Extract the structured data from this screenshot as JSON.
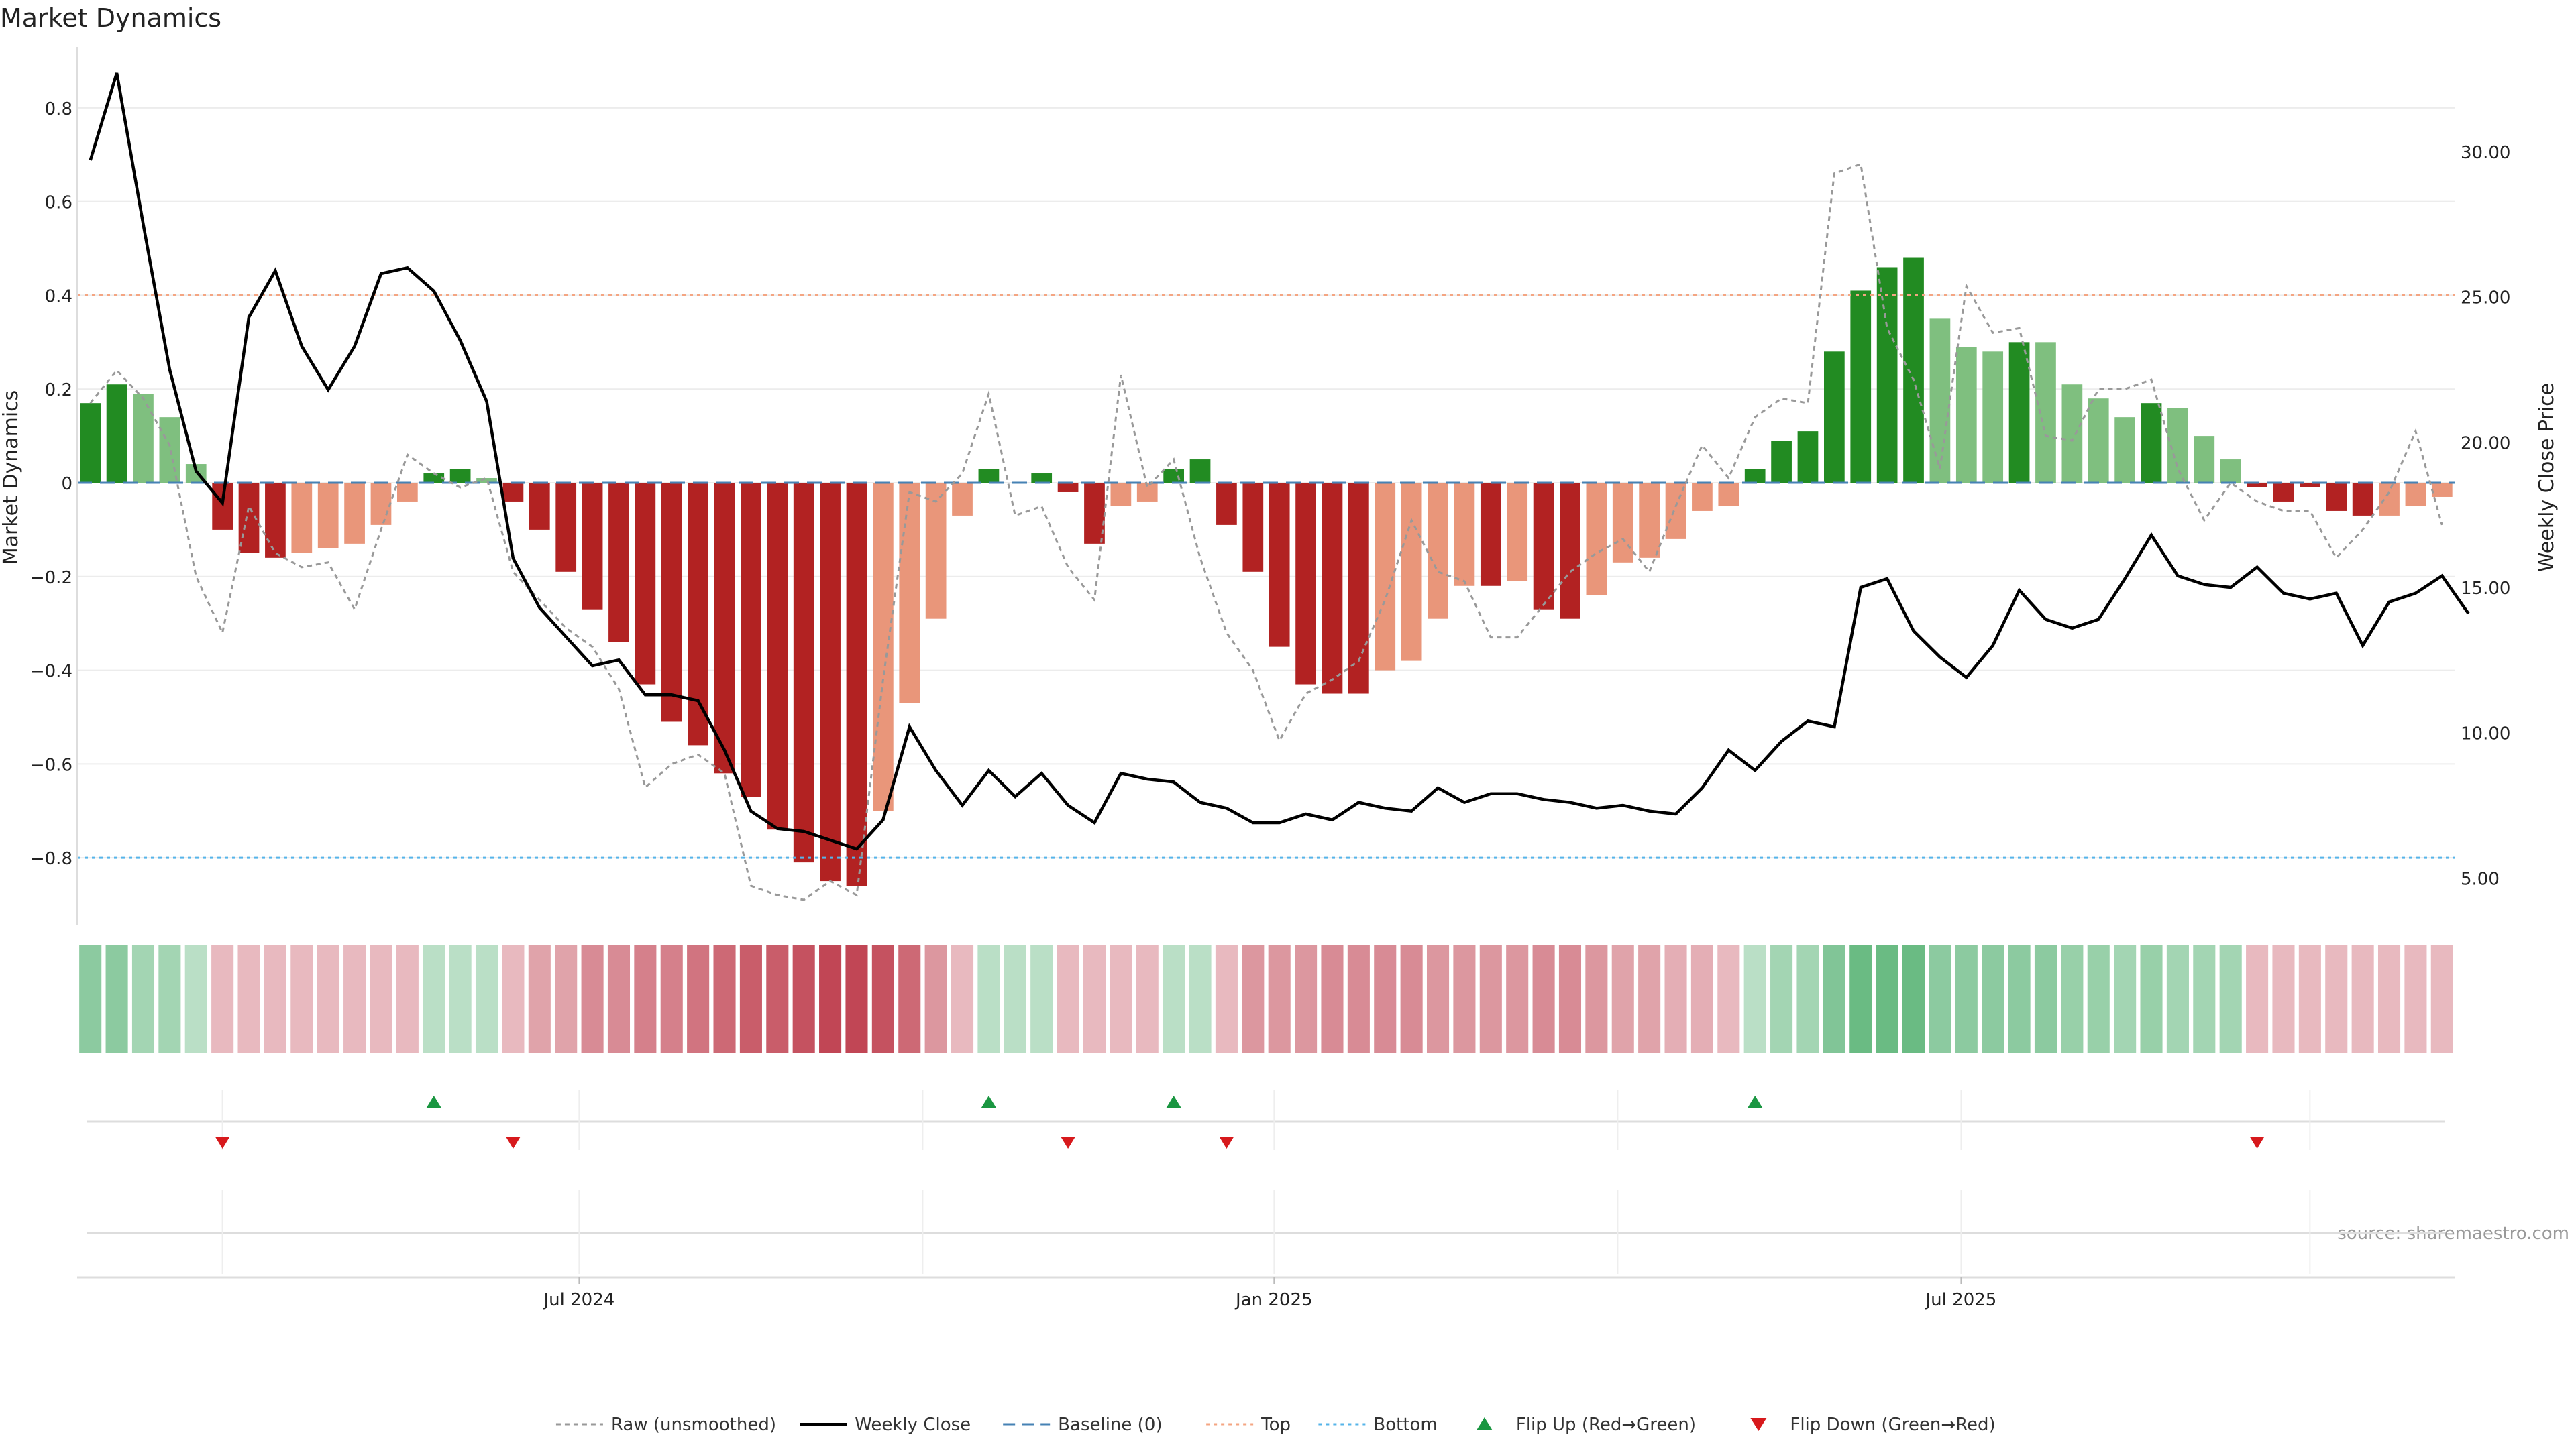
{
  "chart_data": {
    "type": "bar",
    "title": "Market Dynamics",
    "ylabel_left": "Market Dynamics",
    "ylabel_right": "Weekly Close Price",
    "source": "source: sharemaestro.com",
    "left_ylim": [
      -0.93,
      0.93
    ],
    "right_ylim": [
      3.6,
      33.6
    ],
    "left_ticks": [
      {
        "v": 0.8,
        "label": "0.8"
      },
      {
        "v": 0.6,
        "label": "0.6"
      },
      {
        "v": 0.4,
        "label": "0.4"
      },
      {
        "v": 0.2,
        "label": "0.2"
      },
      {
        "v": 0,
        "label": "0"
      },
      {
        "v": -0.2,
        "label": "−0.2"
      },
      {
        "v": -0.4,
        "label": "−0.4"
      },
      {
        "v": -0.6,
        "label": "−0.6"
      },
      {
        "v": -0.8,
        "label": "−0.8"
      }
    ],
    "right_ticks": [
      {
        "v": 30,
        "label": "30.00"
      },
      {
        "v": 25,
        "label": "25.00"
      },
      {
        "v": 20,
        "label": "20.00"
      },
      {
        "v": 15,
        "label": "15.00"
      },
      {
        "v": 10,
        "label": "10.00"
      },
      {
        "v": 5,
        "label": "5.00"
      }
    ],
    "x_ticks": [
      {
        "idx": 18.5,
        "label": "Jul 2024"
      },
      {
        "idx": 44.8,
        "label": "Jan 2025"
      },
      {
        "idx": 70.8,
        "label": "Jul 2025"
      }
    ],
    "reference_lines": {
      "top": 0.4,
      "bottom": -0.8,
      "baseline": 0
    },
    "smoothed": [
      0.17,
      0.21,
      0.19,
      0.14,
      0.04,
      -0.1,
      -0.15,
      -0.16,
      -0.15,
      -0.14,
      -0.13,
      -0.09,
      -0.04,
      0.02,
      0.03,
      0.01,
      -0.04,
      -0.1,
      -0.19,
      -0.27,
      -0.34,
      -0.43,
      -0.51,
      -0.56,
      -0.62,
      -0.67,
      -0.74,
      -0.81,
      -0.85,
      -0.86,
      -0.7,
      -0.47,
      -0.29,
      -0.07,
      0.03,
      0.0,
      0.02,
      -0.02,
      -0.13,
      -0.05,
      -0.04,
      0.03,
      0.05,
      -0.09,
      -0.19,
      -0.35,
      -0.43,
      -0.45,
      -0.45,
      -0.4,
      -0.38,
      -0.29,
      -0.22,
      -0.22,
      -0.21,
      -0.27,
      -0.29,
      -0.24,
      -0.17,
      -0.16,
      -0.12,
      -0.06,
      -0.05,
      0.03,
      0.09,
      0.11,
      0.28,
      0.41,
      0.46,
      0.48,
      0.35,
      0.29,
      0.28,
      0.3,
      0.3,
      0.21,
      0.18,
      0.14,
      0.17,
      0.16,
      0.1,
      0.05,
      -0.01,
      -0.04,
      -0.01,
      -0.06,
      -0.07,
      -0.07,
      -0.05,
      -0.03
    ],
    "bar_state": [
      "g",
      "g",
      "lg",
      "lg",
      "lg",
      "r",
      "r",
      "r",
      "lr",
      "lr",
      "lr",
      "lr",
      "lr",
      "g",
      "g",
      "lg",
      "r",
      "r",
      "r",
      "r",
      "r",
      "r",
      "r",
      "r",
      "r",
      "r",
      "r",
      "r",
      "r",
      "r",
      "lr",
      "lr",
      "lr",
      "lr",
      "g",
      "g",
      "g",
      "r",
      "r",
      "lr",
      "lr",
      "g",
      "g",
      "r",
      "r",
      "r",
      "r",
      "r",
      "r",
      "lr",
      "lr",
      "lr",
      "lr",
      "r",
      "lr",
      "r",
      "r",
      "lr",
      "lr",
      "lr",
      "lr",
      "lr",
      "lr",
      "g",
      "g",
      "g",
      "g",
      "g",
      "g",
      "g",
      "lg",
      "lg",
      "lg",
      "g",
      "lg",
      "lg",
      "lg",
      "lg",
      "g",
      "lg",
      "lg",
      "lg",
      "r",
      "r",
      "r",
      "r",
      "r",
      "lr",
      "lr",
      "lr"
    ],
    "raw": [
      0.17,
      0.24,
      0.18,
      0.08,
      -0.2,
      -0.32,
      -0.05,
      -0.15,
      -0.18,
      -0.17,
      -0.27,
      -0.1,
      0.06,
      0.02,
      -0.01,
      0.01,
      -0.19,
      -0.25,
      -0.31,
      -0.35,
      -0.44,
      -0.65,
      -0.6,
      -0.58,
      -0.62,
      -0.86,
      -0.88,
      -0.89,
      -0.85,
      -0.88,
      -0.42,
      -0.02,
      -0.04,
      0.02,
      0.19,
      -0.07,
      -0.05,
      -0.18,
      -0.25,
      0.23,
      -0.01,
      0.05,
      -0.16,
      -0.32,
      -0.4,
      -0.55,
      -0.45,
      -0.42,
      -0.38,
      -0.25,
      -0.08,
      -0.19,
      -0.21,
      -0.33,
      -0.33,
      -0.26,
      -0.19,
      -0.15,
      -0.12,
      -0.19,
      -0.05,
      0.08,
      0.01,
      0.14,
      0.18,
      0.17,
      0.66,
      0.68,
      0.33,
      0.22,
      0.03,
      0.42,
      0.32,
      0.33,
      0.1,
      0.09,
      0.2,
      0.2,
      0.22,
      0.03,
      -0.08,
      0.0,
      -0.04,
      -0.06,
      -0.06,
      -0.16,
      -0.1,
      -0.02,
      0.11,
      -0.09
    ],
    "close": [
      29.7,
      32.7,
      27.5,
      22.5,
      19.0,
      17.9,
      24.3,
      25.9,
      23.3,
      21.8,
      23.3,
      25.8,
      26.0,
      25.2,
      23.5,
      21.4,
      16.0,
      14.3,
      13.3,
      12.3,
      12.5,
      11.3,
      11.3,
      11.1,
      9.4,
      7.3,
      6.7,
      6.6,
      6.3,
      6.0,
      7.0,
      10.2,
      8.7,
      7.5,
      8.7,
      7.8,
      8.6,
      7.5,
      6.9,
      8.6,
      8.4,
      8.3,
      7.6,
      7.4,
      6.9,
      6.9,
      7.2,
      7.0,
      7.6,
      7.4,
      7.3,
      8.1,
      7.6,
      7.9,
      7.9,
      7.7,
      7.6,
      7.4,
      7.5,
      7.3,
      7.2,
      8.1,
      9.4,
      8.7,
      9.7,
      10.4,
      10.2,
      15.0,
      15.3,
      13.5,
      12.6,
      11.9,
      13.0,
      14.9,
      13.9,
      13.6,
      13.9,
      15.3,
      16.8,
      15.4,
      15.1,
      15.0,
      15.7,
      14.8,
      14.6,
      14.8,
      13.0,
      14.5,
      14.8,
      15.4,
      14.1
    ],
    "heat_intensity": [
      0.5,
      0.5,
      0.4,
      0.4,
      0.3,
      0.3,
      0.3,
      0.3,
      0.3,
      0.3,
      0.3,
      0.3,
      0.3,
      0.3,
      0.3,
      0.3,
      0.3,
      0.4,
      0.4,
      0.5,
      0.5,
      0.55,
      0.55,
      0.6,
      0.65,
      0.7,
      0.7,
      0.75,
      0.8,
      0.8,
      0.75,
      0.65,
      0.45,
      0.3,
      0.3,
      0.3,
      0.3,
      0.3,
      0.3,
      0.3,
      0.3,
      0.3,
      0.3,
      0.3,
      0.45,
      0.45,
      0.45,
      0.5,
      0.5,
      0.5,
      0.5,
      0.45,
      0.45,
      0.45,
      0.45,
      0.5,
      0.5,
      0.45,
      0.4,
      0.4,
      0.35,
      0.35,
      0.3,
      0.3,
      0.4,
      0.4,
      0.55,
      0.65,
      0.65,
      0.65,
      0.5,
      0.5,
      0.5,
      0.5,
      0.5,
      0.45,
      0.45,
      0.4,
      0.45,
      0.4,
      0.4,
      0.4,
      0.3,
      0.3,
      0.3,
      0.3,
      0.3,
      0.3,
      0.3,
      0.3
    ],
    "heat_sign": [
      "g",
      "g",
      "g",
      "g",
      "g",
      "r",
      "r",
      "r",
      "r",
      "r",
      "r",
      "r",
      "r",
      "g",
      "g",
      "g",
      "r",
      "r",
      "r",
      "r",
      "r",
      "r",
      "r",
      "r",
      "r",
      "r",
      "r",
      "r",
      "r",
      "r",
      "r",
      "r",
      "r",
      "r",
      "g",
      "g",
      "g",
      "r",
      "r",
      "r",
      "r",
      "g",
      "g",
      "r",
      "r",
      "r",
      "r",
      "r",
      "r",
      "r",
      "r",
      "r",
      "r",
      "r",
      "r",
      "r",
      "r",
      "r",
      "r",
      "r",
      "r",
      "r",
      "r",
      "g",
      "g",
      "g",
      "g",
      "g",
      "g",
      "g",
      "g",
      "g",
      "g",
      "g",
      "g",
      "g",
      "g",
      "g",
      "g",
      "g",
      "g",
      "g",
      "r",
      "r",
      "r",
      "r",
      "r",
      "r",
      "r",
      "r"
    ],
    "flips_up": [
      13,
      34,
      41,
      63
    ],
    "flips_down": [
      5,
      16,
      37,
      43,
      82
    ],
    "legend": [
      {
        "label": "Raw (unsmoothed)",
        "style": "raw"
      },
      {
        "label": "Weekly Close",
        "style": "close"
      },
      {
        "label": "Baseline (0)",
        "style": "baseline"
      },
      {
        "label": "Top",
        "style": "top"
      },
      {
        "label": "Bottom",
        "style": "bottom"
      },
      {
        "label": "Flip Up (Red→Green)",
        "style": "flipup"
      },
      {
        "label": "Flip Down (Green→Red)",
        "style": "flipdown"
      }
    ],
    "colors": {
      "green": "#228B22",
      "light_green": "#7FBF7F",
      "red": "#B22222",
      "light_red": "#E9967A",
      "close_line": "#000000",
      "raw_line": "#999999",
      "baseline": "#4682B4",
      "top_line": "#F4A582",
      "bottom_line": "#56B4E9",
      "flip_up": "#1a9641",
      "flip_down": "#d7191c",
      "heat_green": "#1a9641",
      "heat_red": "#b2182b"
    }
  }
}
